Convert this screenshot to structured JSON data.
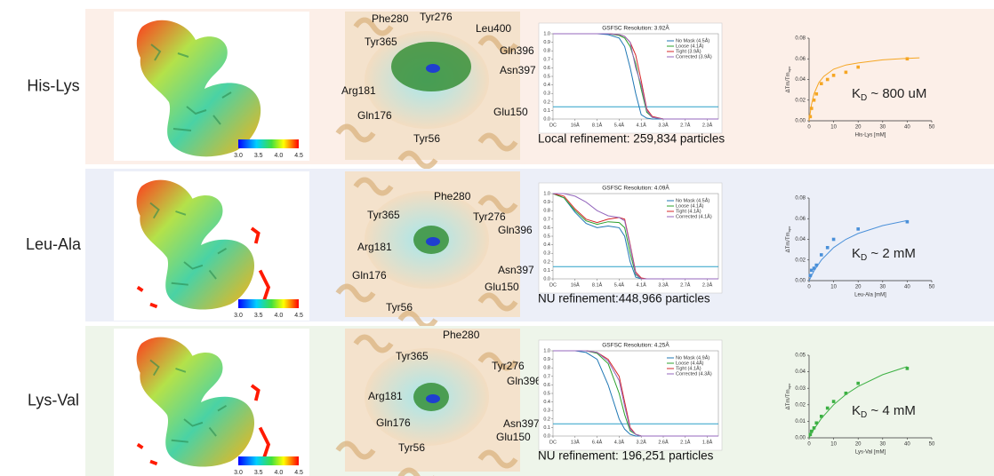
{
  "rows": [
    {
      "label": "His-Lys",
      "colorbar": [
        "3.0",
        "3.5",
        "4.0",
        "4.5"
      ],
      "residues": [
        "Phe280",
        "Tyr276",
        "Leu400",
        "Tyr365",
        "Gln396",
        "Asn397",
        "Arg181",
        "Glu150",
        "Gln176",
        "Tyr56"
      ],
      "refinement": "Local refinement: 259,834 particles"
    },
    {
      "label": "Leu-Ala",
      "colorbar": [
        "3.0",
        "3.5",
        "4.0",
        "4.5"
      ],
      "residues": [
        "Phe280",
        "Tyr365",
        "Tyr276",
        "Gln396",
        "Arg181",
        "Asn397",
        "Gln176",
        "Glu150",
        "Tyr56"
      ],
      "refinement": "NU refinement:448,966 particles"
    },
    {
      "label": "Lys-Val",
      "colorbar": [
        "3.0",
        "3.5",
        "4.0",
        "4.5"
      ],
      "residues": [
        "Phe280",
        "Tyr365",
        "Tyr276",
        "Gln396",
        "Arg181",
        "Gln176",
        "Asn397",
        "Glu150",
        "Tyr56"
      ],
      "refinement": "NU refinement: 196,251 particles"
    }
  ],
  "chart_data": [
    {
      "type": "line",
      "title": "GSFSC Resolution: 3.92Å",
      "x": [
        0,
        0.5,
        1,
        1.5,
        2,
        2.5,
        3,
        3.25,
        3.5,
        3.75,
        4,
        4.25,
        4.5,
        5,
        5.5,
        6,
        6.5,
        7,
        7.5
      ],
      "xlim": [
        0,
        7.5
      ],
      "xticks": [
        {
          "value": 0,
          "label": "DC"
        },
        {
          "value": 1,
          "label": "16Å"
        },
        {
          "value": 2,
          "label": "8.1Å"
        },
        {
          "value": 3,
          "label": "5.4Å"
        },
        {
          "value": 4,
          "label": "4.1Å"
        },
        {
          "value": 5,
          "label": "3.3Å"
        },
        {
          "value": 6,
          "label": "2.7Å"
        },
        {
          "value": 7,
          "label": "2.3Å"
        }
      ],
      "ylim": [
        0,
        1
      ],
      "yticks": [
        {
          "value": 0,
          "label": "0.0"
        },
        0.1,
        0.2,
        0.3,
        0.4,
        0.5,
        0.6,
        0.7,
        0.8,
        0.9,
        {
          "value": 1,
          "label": "1.0"
        }
      ],
      "threshold": 0.143,
      "series": [
        {
          "name": "No Mask (4.5Å)",
          "color": "#1f77b4",
          "values": [
            1,
            1,
            1,
            1,
            1,
            0.99,
            0.95,
            0.85,
            0.6,
            0.3,
            0.05,
            0.01,
            0,
            0,
            0,
            0,
            0,
            0,
            0
          ]
        },
        {
          "name": "Loose (4.1Å)",
          "color": "#2ca02c",
          "values": [
            1,
            1,
            1,
            1,
            1,
            1,
            0.98,
            0.95,
            0.85,
            0.65,
            0.35,
            0.08,
            0.02,
            0,
            0,
            0,
            0,
            0,
            0
          ]
        },
        {
          "name": "Tight (3.9Å)",
          "color": "#d62728",
          "values": [
            1,
            1,
            1,
            1,
            1,
            1,
            0.99,
            0.97,
            0.9,
            0.75,
            0.45,
            0.12,
            0.03,
            0,
            0,
            0,
            0,
            0,
            0
          ]
        },
        {
          "name": "Corrected (3.9Å)",
          "color": "#9467bd",
          "values": [
            1,
            1,
            1,
            1,
            1,
            1,
            0.99,
            0.97,
            0.9,
            0.6,
            0.4,
            0.1,
            0.02,
            0,
            0,
            0,
            0,
            0,
            0
          ]
        }
      ]
    },
    {
      "type": "scatter",
      "x": [
        0.5,
        1,
        2,
        3,
        5,
        7.5,
        10,
        15,
        20,
        40
      ],
      "values": [
        0.004,
        0.012,
        0.02,
        0.026,
        0.036,
        0.04,
        0.044,
        0.047,
        0.052,
        0.06
      ],
      "color": "#f5a623",
      "fit": {
        "x": [
          0,
          1,
          2,
          4,
          6,
          10,
          15,
          20,
          30,
          40,
          45
        ],
        "values": [
          0,
          0.016,
          0.026,
          0.037,
          0.043,
          0.05,
          0.054,
          0.056,
          0.059,
          0.0605,
          0.061
        ]
      },
      "xlabel": "His-Lys [mM]",
      "ylabel": [
        "ΔTm/Tm",
        "apo"
      ],
      "annotation": [
        "K",
        "D",
        " ~ 800 uM"
      ],
      "xlim": [
        0,
        50
      ],
      "xticks": [
        0,
        10,
        20,
        30,
        40,
        50
      ],
      "ylim": [
        0,
        0.08
      ],
      "yticks": [
        {
          "value": 0,
          "label": "0.00"
        },
        0.02,
        0.04,
        0.06,
        0.08
      ]
    },
    {
      "type": "line",
      "title": "GSFSC Resolution: 4.09Å",
      "x": [
        0,
        0.5,
        1,
        1.5,
        2,
        2.5,
        3,
        3.25,
        3.5,
        3.75,
        4,
        4.25,
        4.5,
        5,
        5.5,
        6,
        6.5,
        7,
        7.5
      ],
      "xlim": [
        0,
        7.5
      ],
      "xticks": [
        {
          "value": 0,
          "label": "DC"
        },
        {
          "value": 1,
          "label": "16Å"
        },
        {
          "value": 2,
          "label": "8.1Å"
        },
        {
          "value": 3,
          "label": "5.4Å"
        },
        {
          "value": 4,
          "label": "4.1Å"
        },
        {
          "value": 5,
          "label": "3.3Å"
        },
        {
          "value": 6,
          "label": "2.7Å"
        },
        {
          "value": 7,
          "label": "2.3Å"
        }
      ],
      "ylim": [
        0,
        1
      ],
      "yticks": [
        {
          "value": 0,
          "label": "0.0"
        },
        0.1,
        0.2,
        0.3,
        0.4,
        0.5,
        0.6,
        0.7,
        0.8,
        0.9,
        {
          "value": 1,
          "label": "1.0"
        }
      ],
      "threshold": 0.143,
      "series": [
        {
          "name": "No Mask (4.5Å)",
          "color": "#1f77b4",
          "values": [
            1,
            0.95,
            0.78,
            0.65,
            0.6,
            0.62,
            0.6,
            0.5,
            0.2,
            0.02,
            0,
            0,
            0,
            0,
            0,
            0,
            0,
            0,
            0
          ]
        },
        {
          "name": "Loose (4.1Å)",
          "color": "#2ca02c",
          "values": [
            1,
            0.95,
            0.8,
            0.68,
            0.64,
            0.67,
            0.66,
            0.6,
            0.3,
            0.05,
            0,
            0,
            0,
            0,
            0,
            0,
            0,
            0,
            0
          ]
        },
        {
          "name": "Tight (4.1Å)",
          "color": "#d62728",
          "values": [
            1,
            0.97,
            0.82,
            0.7,
            0.66,
            0.7,
            0.72,
            0.7,
            0.4,
            0.08,
            0.01,
            0,
            0,
            0,
            0,
            0,
            0,
            0,
            0
          ]
        },
        {
          "name": "Corrected (4.1Å)",
          "color": "#9467bd",
          "values": [
            1,
            1,
            0.97,
            0.9,
            0.8,
            0.74,
            0.72,
            0.68,
            0.38,
            0.06,
            0,
            0,
            0,
            0,
            0,
            0,
            0,
            0,
            0
          ]
        }
      ]
    },
    {
      "type": "scatter",
      "x": [
        0.5,
        1,
        2,
        3,
        5,
        7.5,
        10,
        20,
        40
      ],
      "values": [
        0.005,
        0.01,
        0.012,
        0.015,
        0.025,
        0.032,
        0.04,
        0.05,
        0.057
      ],
      "color": "#4a90d9",
      "fit": {
        "x": [
          0,
          2,
          5,
          10,
          15,
          20,
          30,
          40
        ],
        "values": [
          0,
          0.0094,
          0.02,
          0.032,
          0.04,
          0.0457,
          0.0533,
          0.0582
        ]
      },
      "xlabel": "Leu-Ala [mM]",
      "ylabel": [
        "ΔTm/Tm",
        "apo"
      ],
      "annotation": [
        "K",
        "D",
        " ~ 2 mM"
      ],
      "xlim": [
        0,
        50
      ],
      "xticks": [
        0,
        10,
        20,
        30,
        40,
        50
      ],
      "ylim": [
        0,
        0.08
      ],
      "yticks": [
        {
          "value": 0,
          "label": "0.00"
        },
        0.02,
        0.04,
        0.06,
        0.08
      ]
    },
    {
      "type": "line",
      "title": "GSFSC Resolution: 4.25Å",
      "x": [
        0,
        0.5,
        1,
        1.5,
        2,
        2.5,
        3,
        3.25,
        3.5,
        3.75,
        4,
        4.25,
        4.5,
        5,
        5.5,
        6,
        6.5,
        7,
        7.5
      ],
      "xlim": [
        0,
        7.5
      ],
      "xticks": [
        {
          "value": 0,
          "label": "DC"
        },
        {
          "value": 1,
          "label": "13Å"
        },
        {
          "value": 2,
          "label": "6.4Å"
        },
        {
          "value": 3,
          "label": "4.3Å"
        },
        {
          "value": 4,
          "label": "3.2Å"
        },
        {
          "value": 5,
          "label": "2.6Å"
        },
        {
          "value": 6,
          "label": "2.1Å"
        },
        {
          "value": 7,
          "label": "1.8Å"
        }
      ],
      "ylim": [
        0,
        1
      ],
      "yticks": [
        {
          "value": 0,
          "label": "0.0"
        },
        0.1,
        0.2,
        0.3,
        0.4,
        0.5,
        0.6,
        0.7,
        0.8,
        0.9,
        {
          "value": 1,
          "label": "1.0"
        }
      ],
      "threshold": 0.143,
      "series": [
        {
          "name": "No Mask (4.9Å)",
          "color": "#1f77b4",
          "values": [
            1,
            1,
            1,
            0.98,
            0.9,
            0.6,
            0.2,
            0.08,
            0.02,
            0,
            0,
            0,
            0,
            0,
            0,
            0,
            0,
            0,
            0
          ]
        },
        {
          "name": "Loose (4.4Å)",
          "color": "#2ca02c",
          "values": [
            1,
            1,
            1,
            1,
            0.97,
            0.85,
            0.5,
            0.25,
            0.06,
            0.02,
            0,
            0,
            0,
            0,
            0,
            0,
            0,
            0,
            0
          ]
        },
        {
          "name": "Tight (4.1Å)",
          "color": "#d62728",
          "values": [
            1,
            1,
            1,
            1,
            0.98,
            0.9,
            0.7,
            0.4,
            0.1,
            0.02,
            0,
            0,
            0,
            0,
            0,
            0,
            0,
            0,
            0
          ]
        },
        {
          "name": "Corrected (4.3Å)",
          "color": "#9467bd",
          "values": [
            1,
            1,
            1,
            1,
            0.98,
            0.88,
            0.65,
            0.35,
            0.08,
            0.02,
            0,
            0,
            0,
            0,
            0,
            0,
            0,
            0,
            0
          ]
        }
      ]
    },
    {
      "type": "scatter",
      "x": [
        0.5,
        1,
        2,
        3,
        5,
        7.5,
        10,
        15,
        20,
        40
      ],
      "values": [
        0.002,
        0.004,
        0.006,
        0.009,
        0.013,
        0.018,
        0.022,
        0.027,
        0.033,
        0.042
      ],
      "color": "#3cb043",
      "fit": {
        "x": [
          0,
          2,
          5,
          10,
          15,
          20,
          30,
          40
        ],
        "values": [
          0,
          0.0052,
          0.0117,
          0.02,
          0.0263,
          0.0311,
          0.0382,
          0.0431
        ]
      },
      "xlabel": "Lys-Val [mM]",
      "ylabel": [
        "ΔTm/Tm",
        "apo"
      ],
      "annotation": [
        "K",
        "D",
        " ~ 4 mM"
      ],
      "xlim": [
        0,
        50
      ],
      "xticks": [
        0,
        10,
        20,
        30,
        40,
        50
      ],
      "ylim": [
        0,
        0.05
      ],
      "yticks": [
        {
          "value": 0,
          "label": "0.00"
        },
        0.01,
        0.02,
        0.03,
        0.04,
        0.05
      ]
    }
  ]
}
